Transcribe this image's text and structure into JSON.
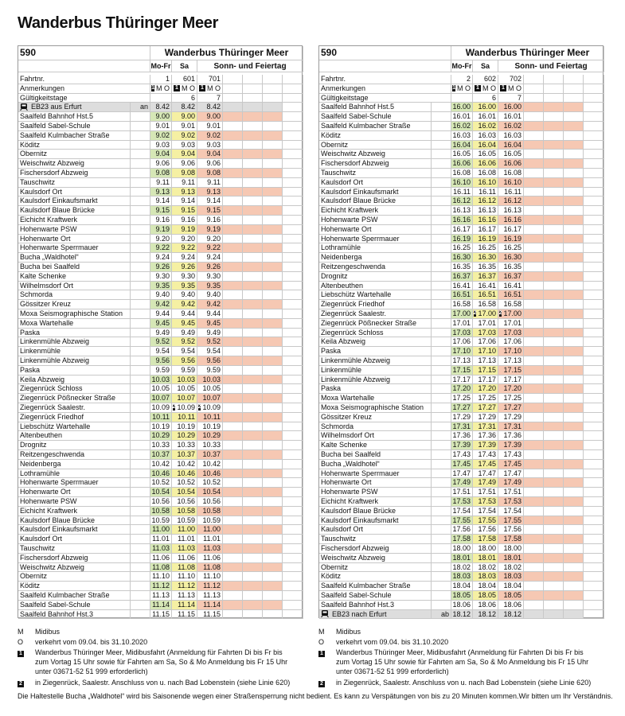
{
  "title": "Wanderbus Thüringer Meer",
  "tables": [
    {
      "line": "590",
      "name": "Wanderbus Thüringer Meer",
      "days": [
        "Mo-Fr",
        "Sa",
        "Sonn- und Feiertag"
      ],
      "fahrtnr": {
        "label": "Fahrtnr.",
        "values": [
          "1",
          "601",
          "701"
        ]
      },
      "anmerkungen": {
        "label": "Anmerkungen",
        "badge": "1",
        "values": [
          "M O",
          "M O",
          "M O"
        ]
      },
      "gueltig": {
        "label": "Gültigkeitstage",
        "values": [
          null,
          "6",
          "7"
        ]
      },
      "rows": [
        {
          "s": "EB23 aus Erfurt",
          "dir": "an",
          "t": [
            "8.42",
            "8.42",
            "8.42"
          ]
        },
        {
          "s": "Saalfeld Bahnhof Hst.5",
          "t": [
            "9.00",
            "9.00",
            "9.00"
          ]
        },
        {
          "s": "Saalfeld Sabel-Schule",
          "t": [
            "9.01",
            "9.01",
            "9.01"
          ]
        },
        {
          "s": "Saalfeld Kulmbacher Straße",
          "t": [
            "9.02",
            "9.02",
            "9.02"
          ]
        },
        {
          "s": "Köditz",
          "t": [
            "9.03",
            "9.03",
            "9.03"
          ]
        },
        {
          "s": "Obernitz",
          "t": [
            "9.04",
            "9.04",
            "9.04"
          ]
        },
        {
          "s": "Weischwitz Abzweig",
          "t": [
            "9.06",
            "9.06",
            "9.06"
          ]
        },
        {
          "s": "Fischersdorf Abzweig",
          "t": [
            "9.08",
            "9.08",
            "9.08"
          ]
        },
        {
          "s": "Tauschwitz",
          "t": [
            "9.11",
            "9.11",
            "9.11"
          ]
        },
        {
          "s": "Kaulsdorf Ort",
          "t": [
            "9.13",
            "9.13",
            "9.13"
          ]
        },
        {
          "s": "Kaulsdorf Einkaufsmarkt",
          "t": [
            "9.14",
            "9.14",
            "9.14"
          ]
        },
        {
          "s": "Kaulsdorf Blaue Brücke",
          "t": [
            "9.15",
            "9.15",
            "9.15"
          ]
        },
        {
          "s": "Eichicht Kraftwerk",
          "t": [
            "9.16",
            "9.16",
            "9.16"
          ]
        },
        {
          "s": "Hohenwarte PSW",
          "t": [
            "9.19",
            "9.19",
            "9.19"
          ]
        },
        {
          "s": "Hohenwarte Ort",
          "t": [
            "9.20",
            "9.20",
            "9.20"
          ]
        },
        {
          "s": "Hohenwarte Sperrmauer",
          "t": [
            "9.22",
            "9.22",
            "9.22"
          ]
        },
        {
          "s": "Bucha „Waldhotel“",
          "t": [
            "9.24",
            "9.24",
            "9.24"
          ]
        },
        {
          "s": "Bucha bei Saalfeld",
          "t": [
            "9.26",
            "9.26",
            "9.26"
          ]
        },
        {
          "s": "Kalte Schenke",
          "t": [
            "9.30",
            "9.30",
            "9.30"
          ]
        },
        {
          "s": "Wilhelmsdorf Ort",
          "t": [
            "9.35",
            "9.35",
            "9.35"
          ]
        },
        {
          "s": "Schmorda",
          "t": [
            "9.40",
            "9.40",
            "9.40"
          ]
        },
        {
          "s": "Gössitzer Kreuz",
          "t": [
            "9.42",
            "9.42",
            "9.42"
          ]
        },
        {
          "s": "Moxa Seismographische Station",
          "t": [
            "9.44",
            "9.44",
            "9.44"
          ]
        },
        {
          "s": "Moxa Wartehalle",
          "t": [
            "9.45",
            "9.45",
            "9.45"
          ]
        },
        {
          "s": "Paska",
          "t": [
            "9.49",
            "9.49",
            "9.49"
          ]
        },
        {
          "s": "Linkenmühle Abzweig",
          "t": [
            "9.52",
            "9.52",
            "9.52"
          ]
        },
        {
          "s": "Linkenmühle",
          "t": [
            "9.54",
            "9.54",
            "9.54"
          ]
        },
        {
          "s": "Linkenmühle Abzweig",
          "t": [
            "9.56",
            "9.56",
            "9.56"
          ]
        },
        {
          "s": "Paska",
          "t": [
            "9.59",
            "9.59",
            "9.59"
          ]
        },
        {
          "s": "Keila Abzweig",
          "t": [
            "10.03",
            "10.03",
            "10.03"
          ]
        },
        {
          "s": "Ziegenrück Schloss",
          "t": [
            "10.05",
            "10.05",
            "10.05"
          ]
        },
        {
          "s": "Ziegenrück Pößnecker Straße",
          "t": [
            "10.07",
            "10.07",
            "10.07"
          ]
        },
        {
          "s": "Ziegenrück Saalestr.",
          "badge": "2",
          "t": [
            "10.09",
            "10.09",
            "10.09"
          ]
        },
        {
          "s": "Ziegenrück Friedhof",
          "t": [
            "10.11",
            "10.11",
            "10.11"
          ]
        },
        {
          "s": "Liebschütz Wartehalle",
          "t": [
            "10.19",
            "10.19",
            "10.19"
          ]
        },
        {
          "s": "Altenbeuthen",
          "t": [
            "10.29",
            "10.29",
            "10.29"
          ]
        },
        {
          "s": "Drognitz",
          "t": [
            "10.33",
            "10.33",
            "10.33"
          ]
        },
        {
          "s": "Reitzengeschwenda",
          "t": [
            "10.37",
            "10.37",
            "10.37"
          ]
        },
        {
          "s": "Neidenberga",
          "t": [
            "10.42",
            "10.42",
            "10.42"
          ]
        },
        {
          "s": "Lothramühle",
          "t": [
            "10.46",
            "10.46",
            "10.46"
          ]
        },
        {
          "s": "Hohenwarte Sperrmauer",
          "t": [
            "10.52",
            "10.52",
            "10.52"
          ]
        },
        {
          "s": "Hohenwarte Ort",
          "t": [
            "10.54",
            "10.54",
            "10.54"
          ]
        },
        {
          "s": "Hohenwarte PSW",
          "t": [
            "10.56",
            "10.56",
            "10.56"
          ]
        },
        {
          "s": "Eichicht Kraftwerk",
          "t": [
            "10.58",
            "10.58",
            "10.58"
          ]
        },
        {
          "s": "Kaulsdorf Blaue Brücke",
          "t": [
            "10.59",
            "10.59",
            "10.59"
          ]
        },
        {
          "s": "Kaulsdorf Einkaufsmarkt",
          "t": [
            "11.00",
            "11.00",
            "11.00"
          ]
        },
        {
          "s": "Kaulsdorf Ort",
          "t": [
            "11.01",
            "11.01",
            "11.01"
          ]
        },
        {
          "s": "Tauschwitz",
          "t": [
            "11.03",
            "11.03",
            "11.03"
          ]
        },
        {
          "s": "Fischersdorf Abzweig",
          "t": [
            "11.06",
            "11.06",
            "11.06"
          ]
        },
        {
          "s": "Weischwitz Abzweig",
          "t": [
            "11.08",
            "11.08",
            "11.08"
          ]
        },
        {
          "s": "Obernitz",
          "t": [
            "11.10",
            "11.10",
            "11.10"
          ]
        },
        {
          "s": "Köditz",
          "t": [
            "11.12",
            "11.12",
            "11.12"
          ]
        },
        {
          "s": "Saalfeld Kulmbacher Straße",
          "t": [
            "11.13",
            "11.13",
            "11.13"
          ]
        },
        {
          "s": "Saalfeld Sabel-Schule",
          "t": [
            "11.14",
            "11.14",
            "11.14"
          ]
        },
        {
          "s": "Saalfeld Bahnhof Hst.3",
          "t": [
            "11.15",
            "11.15",
            "11.15"
          ]
        }
      ]
    },
    {
      "line": "590",
      "name": "Wanderbus Thüringer Meer",
      "days": [
        "Mo-Fr",
        "Sa",
        "Sonn- und Feiertag"
      ],
      "fahrtnr": {
        "label": "Fahrtnr.",
        "values": [
          "2",
          "602",
          "702"
        ]
      },
      "anmerkungen": {
        "label": "Anmerkungen",
        "badge": "1",
        "values": [
          "M O",
          "M O",
          "M O"
        ]
      },
      "gueltig": {
        "label": "Gültigkeitstage",
        "values": [
          null,
          "6",
          "7"
        ]
      },
      "rows": [
        {
          "s": "Saalfeld Bahnhof Hst.5",
          "t": [
            "16.00",
            "16.00",
            "16.00"
          ]
        },
        {
          "s": "Saalfeld Sabel-Schule",
          "t": [
            "16.01",
            "16.01",
            "16.01"
          ]
        },
        {
          "s": "Saalfeld Kulmbacher Straße",
          "t": [
            "16.02",
            "16.02",
            "16.02"
          ]
        },
        {
          "s": "Köditz",
          "t": [
            "16.03",
            "16.03",
            "16.03"
          ]
        },
        {
          "s": "Obernitz",
          "t": [
            "16.04",
            "16.04",
            "16.04"
          ]
        },
        {
          "s": "Weischwitz Abzweig",
          "t": [
            "16.05",
            "16.05",
            "16.05"
          ]
        },
        {
          "s": "Fischersdorf Abzweig",
          "t": [
            "16.06",
            "16.06",
            "16.06"
          ]
        },
        {
          "s": "Tauschwitz",
          "t": [
            "16.08",
            "16.08",
            "16.08"
          ]
        },
        {
          "s": "Kaulsdorf Ort",
          "t": [
            "16.10",
            "16.10",
            "16.10"
          ]
        },
        {
          "s": "Kaulsdorf Einkaufsmarkt",
          "t": [
            "16.11",
            "16.11",
            "16.11"
          ]
        },
        {
          "s": "Kaulsdorf Blaue Brücke",
          "t": [
            "16.12",
            "16.12",
            "16.12"
          ]
        },
        {
          "s": "Eichicht Kraftwerk",
          "t": [
            "16.13",
            "16.13",
            "16.13"
          ]
        },
        {
          "s": "Hohenwarte PSW",
          "t": [
            "16.16",
            "16.16",
            "16.16"
          ]
        },
        {
          "s": "Hohenwarte Ort",
          "t": [
            "16.17",
            "16.17",
            "16.17"
          ]
        },
        {
          "s": "Hohenwarte Sperrmauer",
          "t": [
            "16.19",
            "16.19",
            "16.19"
          ]
        },
        {
          "s": "Lothramühle",
          "t": [
            "16.25",
            "16.25",
            "16.25"
          ]
        },
        {
          "s": "Neidenberga",
          "t": [
            "16.30",
            "16.30",
            "16.30"
          ]
        },
        {
          "s": "Reitzengeschwenda",
          "t": [
            "16.35",
            "16.35",
            "16.35"
          ]
        },
        {
          "s": "Drognitz",
          "t": [
            "16.37",
            "16.37",
            "16.37"
          ]
        },
        {
          "s": "Altenbeuthen",
          "t": [
            "16.41",
            "16.41",
            "16.41"
          ]
        },
        {
          "s": "Liebschütz Wartehalle",
          "t": [
            "16.51",
            "16.51",
            "16.51"
          ]
        },
        {
          "s": "Ziegenrück Friedhof",
          "t": [
            "16.58",
            "16.58",
            "16.58"
          ]
        },
        {
          "s": "Ziegenrück Saalestr.",
          "badge": "2",
          "t": [
            "17.00",
            "17.00",
            "17.00"
          ]
        },
        {
          "s": "Ziegenrück Pößnecker Straße",
          "t": [
            "17.01",
            "17.01",
            "17.01"
          ]
        },
        {
          "s": "Ziegenrück Schloss",
          "t": [
            "17.03",
            "17.03",
            "17.03"
          ]
        },
        {
          "s": "Keila Abzweig",
          "t": [
            "17.06",
            "17.06",
            "17.06"
          ]
        },
        {
          "s": "Paska",
          "t": [
            "17.10",
            "17.10",
            "17.10"
          ]
        },
        {
          "s": "Linkenmühle Abzweig",
          "t": [
            "17.13",
            "17.13",
            "17.13"
          ]
        },
        {
          "s": "Linkenmühle",
          "t": [
            "17.15",
            "17.15",
            "17.15"
          ]
        },
        {
          "s": "Linkenmühle Abzweig",
          "t": [
            "17.17",
            "17.17",
            "17.17"
          ]
        },
        {
          "s": "Paska",
          "t": [
            "17.20",
            "17.20",
            "17.20"
          ]
        },
        {
          "s": "Moxa Wartehalle",
          "t": [
            "17.25",
            "17.25",
            "17.25"
          ]
        },
        {
          "s": "Moxa Seismographische Station",
          "t": [
            "17.27",
            "17.27",
            "17.27"
          ]
        },
        {
          "s": "Gössitzer Kreuz",
          "t": [
            "17.29",
            "17.29",
            "17.29"
          ]
        },
        {
          "s": "Schmorda",
          "t": [
            "17.31",
            "17.31",
            "17.31"
          ]
        },
        {
          "s": "Wilhelmsdorf Ort",
          "t": [
            "17.36",
            "17.36",
            "17.36"
          ]
        },
        {
          "s": "Kalte Schenke",
          "t": [
            "17.39",
            "17.39",
            "17.39"
          ]
        },
        {
          "s": "Bucha bei Saalfeld",
          "t": [
            "17.43",
            "17.43",
            "17.43"
          ]
        },
        {
          "s": "Bucha „Waldhotel“",
          "t": [
            "17.45",
            "17.45",
            "17.45"
          ]
        },
        {
          "s": "Hohenwarte Sperrmauer",
          "t": [
            "17.47",
            "17.47",
            "17.47"
          ]
        },
        {
          "s": "Hohenwarte Ort",
          "t": [
            "17.49",
            "17.49",
            "17.49"
          ]
        },
        {
          "s": "Hohenwarte PSW",
          "t": [
            "17.51",
            "17.51",
            "17.51"
          ]
        },
        {
          "s": "Eichicht Kraftwerk",
          "t": [
            "17.53",
            "17.53",
            "17.53"
          ]
        },
        {
          "s": "Kaulsdorf Blaue Brücke",
          "t": [
            "17.54",
            "17.54",
            "17.54"
          ]
        },
        {
          "s": "Kaulsdorf Einkaufsmarkt",
          "t": [
            "17.55",
            "17.55",
            "17.55"
          ]
        },
        {
          "s": "Kaulsdorf Ort",
          "t": [
            "17.56",
            "17.56",
            "17.56"
          ]
        },
        {
          "s": "Tauschwitz",
          "t": [
            "17.58",
            "17.58",
            "17.58"
          ]
        },
        {
          "s": "Fischersdorf Abzweig",
          "t": [
            "18.00",
            "18.00",
            "18.00"
          ]
        },
        {
          "s": "Weischwitz Abzweig",
          "t": [
            "18.01",
            "18.01",
            "18.01"
          ]
        },
        {
          "s": "Obernitz",
          "t": [
            "18.02",
            "18.02",
            "18.02"
          ]
        },
        {
          "s": "Köditz",
          "t": [
            "18.03",
            "18.03",
            "18.03"
          ]
        },
        {
          "s": "Saalfeld Kulmbacher Straße",
          "t": [
            "18.04",
            "18.04",
            "18.04"
          ]
        },
        {
          "s": "Saalfeld Sabel-Schule",
          "t": [
            "18.05",
            "18.05",
            "18.05"
          ]
        },
        {
          "s": "Saalfeld Bahnhof Hst.3",
          "t": [
            "18.06",
            "18.06",
            "18.06"
          ]
        },
        {
          "s": "EB23 nach Erfurt",
          "dir": "ab",
          "t": [
            "18.12",
            "18.12",
            "18.12"
          ]
        }
      ]
    }
  ],
  "legend": [
    {
      "key": "M",
      "text": "Midibus"
    },
    {
      "key": "O",
      "text": "verkehrt vom 09.04. bis 31.10.2020"
    },
    {
      "badge": "1",
      "text": "Wanderbus Thüringer Meer, Midibusfahrt (Anmeldung für Fahrten Di bis Fr bis zum Vortag 15 Uhr sowie für Fahrten am Sa, So & Mo Anmeldung bis Fr 15 Uhr unter 03671-52 51 999 erforderlich)"
    },
    {
      "badge": "2",
      "text": "in Ziegenrück, Saalestr. Anschluss von u. nach Bad Lobenstein (siehe Linie 620)"
    }
  ],
  "footer": "Die Haltestelle Bucha „Waldhotel“ wird bis Saisonende wegen einer Straßensperrung nicht bedient. Es kann zu Verspätungen von bis zu 20 Minuten kommen.Wir bitten um Ihr Verständnis."
}
